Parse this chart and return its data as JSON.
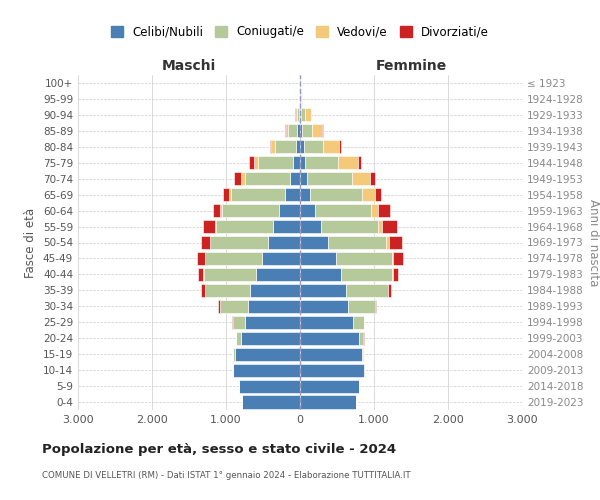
{
  "age_groups": [
    "100+",
    "95-99",
    "90-94",
    "85-89",
    "80-84",
    "75-79",
    "70-74",
    "65-69",
    "60-64",
    "55-59",
    "50-54",
    "45-49",
    "40-44",
    "35-39",
    "30-34",
    "25-29",
    "20-24",
    "15-19",
    "10-14",
    "5-9",
    "0-4"
  ],
  "birth_years": [
    "≤ 1923",
    "1924-1928",
    "1929-1933",
    "1934-1938",
    "1939-1943",
    "1944-1948",
    "1949-1953",
    "1954-1958",
    "1959-1963",
    "1964-1968",
    "1969-1973",
    "1974-1978",
    "1979-1983",
    "1984-1988",
    "1989-1993",
    "1994-1998",
    "1999-2003",
    "2004-2008",
    "2009-2013",
    "2014-2018",
    "2019-2023"
  ],
  "males": {
    "celibi": [
      5,
      8,
      15,
      35,
      60,
      90,
      130,
      200,
      280,
      360,
      430,
      520,
      600,
      680,
      700,
      750,
      800,
      880,
      900,
      820,
      780
    ],
    "coniugati": [
      2,
      5,
      30,
      130,
      280,
      480,
      620,
      730,
      780,
      780,
      780,
      760,
      700,
      600,
      380,
      160,
      60,
      20,
      5,
      3,
      2
    ],
    "vedovi": [
      1,
      3,
      15,
      30,
      55,
      55,
      50,
      35,
      20,
      15,
      10,
      8,
      5,
      3,
      2,
      2,
      1,
      1,
      0,
      0,
      0
    ],
    "divorziati": [
      0,
      1,
      2,
      5,
      15,
      70,
      90,
      80,
      100,
      150,
      120,
      100,
      70,
      50,
      20,
      10,
      5,
      2,
      0,
      0,
      0
    ]
  },
  "females": {
    "nubili": [
      5,
      10,
      20,
      30,
      50,
      70,
      100,
      130,
      200,
      280,
      380,
      480,
      560,
      620,
      650,
      720,
      800,
      840,
      870,
      800,
      760
    ],
    "coniugate": [
      2,
      5,
      45,
      130,
      260,
      450,
      600,
      710,
      760,
      770,
      780,
      760,
      680,
      570,
      360,
      140,
      55,
      18,
      5,
      3,
      2
    ],
    "vedove": [
      3,
      15,
      80,
      140,
      220,
      260,
      240,
      180,
      100,
      60,
      40,
      20,
      10,
      5,
      3,
      2,
      1,
      1,
      0,
      0,
      0
    ],
    "divorziate": [
      0,
      2,
      5,
      10,
      20,
      50,
      80,
      80,
      160,
      200,
      180,
      130,
      70,
      40,
      15,
      8,
      4,
      2,
      0,
      0,
      0
    ]
  },
  "color_celibi": "#4a7fb5",
  "color_coniugati": "#b5c99a",
  "color_vedovi": "#f5c97a",
  "color_divorziati": "#cc2222",
  "title": "Popolazione per età, sesso e stato civile - 2024",
  "subtitle": "COMUNE DI VELLETRI (RM) - Dati ISTAT 1° gennaio 2024 - Elaborazione TUTTITALIA.IT",
  "xlabel_left": "Maschi",
  "xlabel_right": "Femmine",
  "ylabel_left": "Fasce di età",
  "ylabel_right": "Anni di nascita",
  "xlim": 3000,
  "background_color": "#ffffff",
  "legend_labels": [
    "Celibi/Nubili",
    "Coniugati/e",
    "Vedovi/e",
    "Divorziati/e"
  ]
}
